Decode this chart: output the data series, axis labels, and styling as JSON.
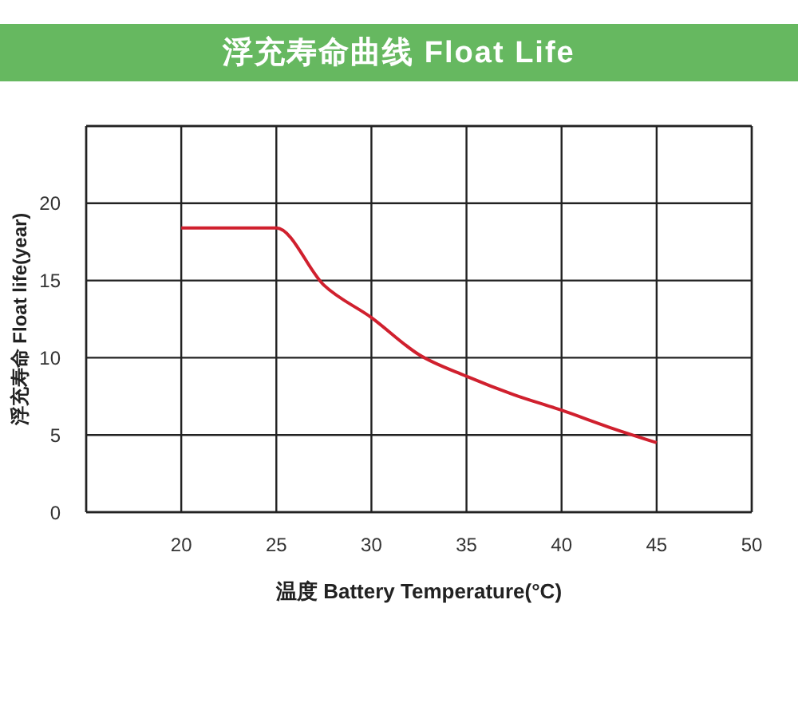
{
  "chart_data": {
    "type": "line",
    "title": "浮充寿命曲线 Float Life",
    "xlabel": "温度 Battery Temperature(°C)",
    "ylabel": "浮充寿命 Float life(year)",
    "x": [
      20,
      25,
      27.5,
      30,
      32.5,
      35,
      37.5,
      40,
      42.5,
      45
    ],
    "series": [
      {
        "color": "#d0202e",
        "values": [
          18.4,
          18.4,
          14.7,
          12.6,
          10.2,
          8.8,
          7.6,
          6.6,
          5.5,
          4.5
        ]
      }
    ],
    "xlim": [
      15,
      50
    ],
    "xticks": [
      20,
      25,
      30,
      35,
      40,
      45,
      50
    ],
    "ylim": [
      0,
      25
    ],
    "yticks": [
      0,
      5,
      10,
      15,
      20
    ],
    "grid": true,
    "legend": false,
    "marker": "none",
    "line_style": "solid"
  }
}
